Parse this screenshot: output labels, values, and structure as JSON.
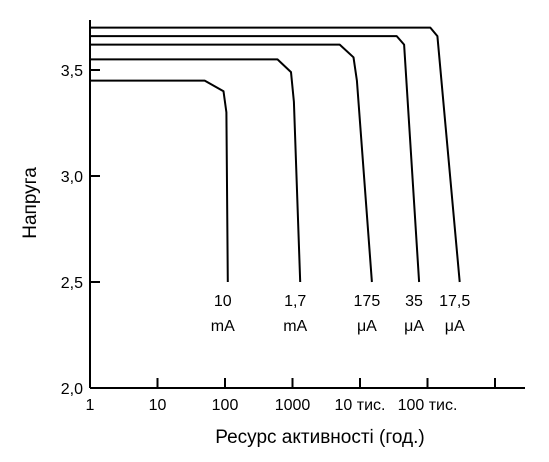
{
  "chart_data": {
    "type": "line",
    "xscale": "log",
    "xlim": [
      1,
      1000000
    ],
    "ylim": [
      2.0,
      3.75
    ],
    "xlabel": "Ресурс активності (год.)",
    "ylabel": "Напруга",
    "x_ticks": [
      {
        "value": 1,
        "label": "1"
      },
      {
        "value": 10,
        "label": "10"
      },
      {
        "value": 100,
        "label": "100"
      },
      {
        "value": 1000,
        "label": "1000"
      },
      {
        "value": 10000,
        "label": "10 тис."
      },
      {
        "value": 100000,
        "label": "100 тис."
      },
      {
        "value": 1000000,
        "label": ""
      }
    ],
    "y_ticks": [
      {
        "value": 2.0,
        "label": "2,0"
      },
      {
        "value": 2.5,
        "label": "2,5"
      },
      {
        "value": 3.0,
        "label": "3,0"
      },
      {
        "value": 3.5,
        "label": "3,5"
      }
    ],
    "grid": false,
    "series": [
      {
        "name": "10 mA",
        "label_lines": [
          "10",
          "mA"
        ],
        "points": [
          [
            1,
            3.45
          ],
          [
            50,
            3.45
          ],
          [
            95,
            3.4
          ],
          [
            105,
            3.3
          ],
          [
            110,
            2.5
          ]
        ]
      },
      {
        "name": "1,7 mA",
        "label_lines": [
          "1,7",
          "mA"
        ],
        "points": [
          [
            1,
            3.55
          ],
          [
            600,
            3.55
          ],
          [
            950,
            3.49
          ],
          [
            1050,
            3.35
          ],
          [
            1300,
            2.5
          ]
        ]
      },
      {
        "name": "175 μA",
        "label_lines": [
          "175",
          "μA"
        ],
        "points": [
          [
            1,
            3.62
          ],
          [
            5000,
            3.62
          ],
          [
            8000,
            3.56
          ],
          [
            9000,
            3.45
          ],
          [
            15000,
            2.5
          ]
        ]
      },
      {
        "name": "35 μA",
        "label_lines": [
          "35",
          "μA"
        ],
        "points": [
          [
            1,
            3.66
          ],
          [
            35000,
            3.66
          ],
          [
            45000,
            3.62
          ],
          [
            75000,
            2.5
          ]
        ]
      },
      {
        "name": "17,5 μA",
        "label_lines": [
          "17,5",
          "μA"
        ],
        "points": [
          [
            1,
            3.7
          ],
          [
            110000,
            3.7
          ],
          [
            140000,
            3.66
          ],
          [
            300000,
            2.5
          ]
        ]
      }
    ]
  }
}
